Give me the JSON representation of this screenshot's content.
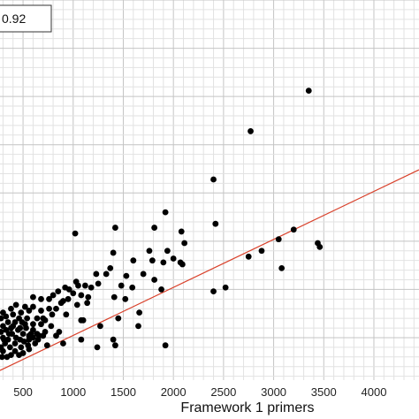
{
  "chart_data": {
    "type": "scatter",
    "xlabel": "Framework 1 primers",
    "ylabel": "",
    "title": "",
    "stat_label": "0.92",
    "xlim": [
      270,
      4450
    ],
    "ylim": [
      280,
      2250
    ],
    "x_ticks": [
      500,
      1000,
      1500,
      2000,
      2500,
      3000,
      3500,
      4000
    ],
    "grid": true,
    "colors": {
      "points": "#000000",
      "trendline": "#d9412b",
      "grid_major": "#c4c4c4",
      "grid_minor": "#e2e2e2"
    },
    "trendline": {
      "x": [
        270,
        4450
      ],
      "y": [
        330,
        1370
      ]
    },
    "points": [
      [
        3350,
        1780
      ],
      [
        2770,
        1570
      ],
      [
        2400,
        1320
      ],
      [
        1920,
        1150
      ],
      [
        1810,
        1070
      ],
      [
        1420,
        1070
      ],
      [
        2420,
        1090
      ],
      [
        3200,
        1060
      ],
      [
        1020,
        1040
      ],
      [
        2080,
        1050
      ],
      [
        3050,
        1010
      ],
      [
        3440,
        990
      ],
      [
        3460,
        970
      ],
      [
        2110,
        990
      ],
      [
        1400,
        940
      ],
      [
        1760,
        950
      ],
      [
        1940,
        950
      ],
      [
        2880,
        950
      ],
      [
        2750,
        920
      ],
      [
        1790,
        900
      ],
      [
        2000,
        910
      ],
      [
        1600,
        900
      ],
      [
        2070,
        890
      ],
      [
        1900,
        890
      ],
      [
        2090,
        880
      ],
      [
        3080,
        860
      ],
      [
        1370,
        860
      ],
      [
        1330,
        830
      ],
      [
        1700,
        830
      ],
      [
        1530,
        820
      ],
      [
        1230,
        830
      ],
      [
        1810,
        800
      ],
      [
        1030,
        790
      ],
      [
        1050,
        770
      ],
      [
        1250,
        780
      ],
      [
        1120,
        770
      ],
      [
        1480,
        770
      ],
      [
        1180,
        760
      ],
      [
        1590,
        760
      ],
      [
        2400,
        740
      ],
      [
        2520,
        760
      ],
      [
        1880,
        750
      ],
      [
        920,
        760
      ],
      [
        960,
        750
      ],
      [
        850,
        740
      ],
      [
        1000,
        730
      ],
      [
        800,
        720
      ],
      [
        1080,
        720
      ],
      [
        1150,
        710
      ],
      [
        1410,
        710
      ],
      [
        600,
        710
      ],
      [
        680,
        700
      ],
      [
        760,
        700
      ],
      [
        900,
        690
      ],
      [
        1520,
        700
      ],
      [
        1140,
        680
      ],
      [
        1040,
        670
      ],
      [
        520,
        660
      ],
      [
        430,
        670
      ],
      [
        600,
        660
      ],
      [
        760,
        650
      ],
      [
        830,
        650
      ],
      [
        680,
        640
      ],
      [
        560,
        640
      ],
      [
        480,
        630
      ],
      [
        380,
        650
      ],
      [
        1660,
        630
      ],
      [
        930,
        620
      ],
      [
        400,
        620
      ],
      [
        300,
        630
      ],
      [
        330,
        610
      ],
      [
        460,
        600
      ],
      [
        540,
        600
      ],
      [
        640,
        600
      ],
      [
        720,
        590
      ],
      [
        1080,
        590
      ],
      [
        1450,
        600
      ],
      [
        1100,
        590
      ],
      [
        420,
        580
      ],
      [
        350,
        580
      ],
      [
        490,
        580
      ],
      [
        600,
        570
      ],
      [
        680,
        570
      ],
      [
        780,
        560
      ],
      [
        300,
        560
      ],
      [
        380,
        550
      ],
      [
        530,
        550
      ],
      [
        1270,
        560
      ],
      [
        1650,
        560
      ],
      [
        330,
        540
      ],
      [
        450,
        540
      ],
      [
        600,
        540
      ],
      [
        720,
        530
      ],
      [
        860,
        530
      ],
      [
        280,
        530
      ],
      [
        390,
        520
      ],
      [
        500,
        520
      ],
      [
        560,
        510
      ],
      [
        660,
        510
      ],
      [
        1080,
        490
      ],
      [
        1400,
        490
      ],
      [
        300,
        500
      ],
      [
        350,
        490
      ],
      [
        470,
        490
      ],
      [
        560,
        490
      ],
      [
        830,
        510
      ],
      [
        320,
        470
      ],
      [
        420,
        470
      ],
      [
        620,
        470
      ],
      [
        900,
        470
      ],
      [
        1240,
        450
      ],
      [
        1420,
        460
      ],
      [
        1920,
        460
      ],
      [
        280,
        450
      ],
      [
        370,
        450
      ],
      [
        480,
        450
      ],
      [
        560,
        440
      ],
      [
        740,
        460
      ],
      [
        300,
        430
      ],
      [
        420,
        430
      ],
      [
        500,
        420
      ],
      [
        380,
        410
      ],
      [
        290,
        400
      ],
      [
        340,
        400
      ],
      [
        460,
        410
      ],
      [
        650,
        490
      ],
      [
        700,
        510
      ],
      [
        550,
        460
      ],
      [
        430,
        500
      ],
      [
        360,
        520
      ],
      [
        510,
        480
      ],
      [
        580,
        520
      ],
      [
        600,
        500
      ],
      [
        470,
        550
      ],
      [
        700,
        600
      ],
      [
        790,
        620
      ],
      [
        880,
        680
      ],
      [
        950,
        700
      ],
      [
        640,
        520
      ],
      [
        520,
        570
      ],
      [
        310,
        490
      ],
      [
        400,
        560
      ],
      [
        280,
        600
      ]
    ]
  }
}
